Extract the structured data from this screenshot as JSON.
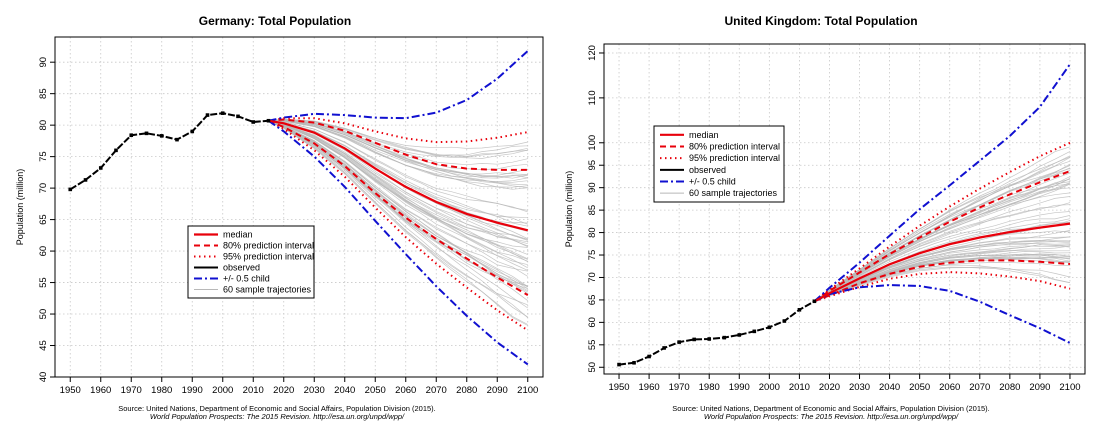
{
  "chart_data": [
    {
      "type": "line",
      "title": "Germany: Total Population",
      "xlabel": "",
      "ylabel": "Population (million)",
      "xlim": [
        1945,
        2105
      ],
      "ylim": [
        40,
        94
      ],
      "xticks": [
        1950,
        1960,
        1970,
        1980,
        1990,
        2000,
        2010,
        2020,
        2030,
        2040,
        2050,
        2060,
        2070,
        2080,
        2090,
        2100
      ],
      "yticks": [
        40,
        45,
        50,
        55,
        60,
        65,
        70,
        75,
        80,
        85,
        90
      ],
      "grid": true,
      "legend": {
        "position": "center-left",
        "entries": [
          "median",
          "80% prediction interval",
          "95% prediction interval",
          "observed",
          "+/- 0.5 child",
          "60 sample trajectories"
        ]
      },
      "observed": {
        "x": [
          1950,
          1955,
          1960,
          1965,
          1970,
          1975,
          1980,
          1985,
          1990,
          1995,
          2000,
          2005,
          2010,
          2015
        ],
        "y": [
          69.8,
          71.3,
          73.2,
          76.0,
          78.4,
          78.7,
          78.3,
          77.7,
          79.0,
          81.6,
          81.9,
          81.4,
          80.5,
          80.7
        ]
      },
      "series": [
        {
          "name": "median",
          "x": [
            2015,
            2020,
            2030,
            2040,
            2050,
            2060,
            2070,
            2080,
            2090,
            2100
          ],
          "y": [
            80.7,
            80.3,
            78.8,
            76.3,
            73.1,
            70.2,
            67.8,
            65.9,
            64.5,
            63.3
          ]
        },
        {
          "name": "80% upper",
          "x": [
            2015,
            2020,
            2030,
            2040,
            2050,
            2060,
            2070,
            2080,
            2090,
            2100
          ],
          "y": [
            80.7,
            80.9,
            80.4,
            79.1,
            77.2,
            75.3,
            73.8,
            73.1,
            72.9,
            72.9
          ]
        },
        {
          "name": "80% lower",
          "x": [
            2015,
            2020,
            2030,
            2040,
            2050,
            2060,
            2070,
            2080,
            2090,
            2100
          ],
          "y": [
            80.7,
            79.7,
            77.1,
            73.5,
            69.2,
            65.3,
            61.9,
            58.8,
            55.8,
            53.0
          ]
        },
        {
          "name": "95% upper",
          "x": [
            2015,
            2020,
            2030,
            2040,
            2050,
            2060,
            2070,
            2080,
            2090,
            2100
          ],
          "y": [
            80.7,
            81.1,
            81.1,
            80.3,
            79.0,
            77.9,
            77.3,
            77.4,
            78.0,
            78.9
          ]
        },
        {
          "name": "95% lower",
          "x": [
            2015,
            2020,
            2030,
            2040,
            2050,
            2060,
            2070,
            2080,
            2090,
            2100
          ],
          "y": [
            80.7,
            79.4,
            76.0,
            71.8,
            66.9,
            62.2,
            58.0,
            54.2,
            50.6,
            47.4
          ]
        },
        {
          "name": "+0.5 child",
          "x": [
            2015,
            2020,
            2030,
            2040,
            2050,
            2060,
            2070,
            2080,
            2090,
            2100
          ],
          "y": [
            80.7,
            81.2,
            81.8,
            81.6,
            81.2,
            81.1,
            82.0,
            84.0,
            87.4,
            91.8
          ]
        },
        {
          "name": "-0.5 child",
          "x": [
            2015,
            2020,
            2030,
            2040,
            2050,
            2060,
            2070,
            2080,
            2090,
            2100
          ],
          "y": [
            80.7,
            79.0,
            75.0,
            70.2,
            64.8,
            59.5,
            54.4,
            49.7,
            45.5,
            42.0
          ]
        }
      ],
      "source_line1": "Source: United Nations, Department of Economic and Social Affairs, Population Division (2015).",
      "source_line2": "World Population Prospects: The 2015 Revision. http://esa.un.org/unpd/wpp/"
    },
    {
      "type": "line",
      "title": "United Kingdom: Total Population",
      "xlabel": "",
      "ylabel": "Population (million)",
      "xlim": [
        1945,
        2105
      ],
      "ylim": [
        48.5,
        122
      ],
      "xticks": [
        1950,
        1960,
        1970,
        1980,
        1990,
        2000,
        2010,
        2020,
        2030,
        2040,
        2050,
        2060,
        2070,
        2080,
        2090,
        2100
      ],
      "yticks": [
        50,
        55,
        60,
        65,
        70,
        75,
        80,
        85,
        90,
        95,
        100,
        110,
        120
      ],
      "grid": true,
      "legend": {
        "position": "top-left",
        "entries": [
          "median",
          "80% prediction interval",
          "95% prediction interval",
          "observed",
          "+/- 0.5 child",
          "60 sample trajectories"
        ]
      },
      "observed": {
        "x": [
          1950,
          1955,
          1960,
          1965,
          1970,
          1975,
          1980,
          1985,
          1990,
          1995,
          2000,
          2005,
          2010,
          2015
        ],
        "y": [
          50.6,
          51.0,
          52.4,
          54.3,
          55.6,
          56.2,
          56.3,
          56.6,
          57.2,
          58.0,
          58.9,
          60.3,
          62.8,
          64.7
        ]
      },
      "series": [
        {
          "name": "median",
          "x": [
            2015,
            2020,
            2030,
            2040,
            2050,
            2060,
            2070,
            2080,
            2090,
            2100
          ],
          "y": [
            64.7,
            66.5,
            69.8,
            72.9,
            75.4,
            77.4,
            78.9,
            80.1,
            81.1,
            82.0
          ]
        },
        {
          "name": "80% upper",
          "x": [
            2015,
            2020,
            2030,
            2040,
            2050,
            2060,
            2070,
            2080,
            2090,
            2100
          ],
          "y": [
            64.7,
            67.0,
            71.1,
            75.2,
            78.9,
            82.4,
            85.6,
            88.5,
            91.2,
            93.7
          ]
        },
        {
          "name": "80% lower",
          "x": [
            2015,
            2020,
            2030,
            2040,
            2050,
            2060,
            2070,
            2080,
            2090,
            2100
          ],
          "y": [
            64.7,
            66.0,
            68.7,
            70.8,
            72.4,
            73.3,
            73.8,
            73.8,
            73.5,
            73.0
          ]
        },
        {
          "name": "95% upper",
          "x": [
            2015,
            2020,
            2030,
            2040,
            2050,
            2060,
            2070,
            2080,
            2090,
            2100
          ],
          "y": [
            64.7,
            67.3,
            72.0,
            76.9,
            81.5,
            85.8,
            89.8,
            93.5,
            97.0,
            100.0
          ]
        },
        {
          "name": "95% lower",
          "x": [
            2015,
            2020,
            2030,
            2040,
            2050,
            2060,
            2070,
            2080,
            2090,
            2100
          ],
          "y": [
            64.7,
            65.8,
            67.9,
            69.7,
            70.8,
            71.2,
            70.9,
            70.2,
            69.2,
            67.5
          ]
        },
        {
          "name": "+0.5 child",
          "x": [
            2015,
            2020,
            2030,
            2040,
            2050,
            2060,
            2070,
            2080,
            2090,
            2100
          ],
          "y": [
            64.7,
            67.7,
            73.3,
            79.3,
            85.2,
            90.5,
            96.0,
            101.5,
            108.0,
            117.5
          ]
        },
        {
          "name": "-0.5 child",
          "x": [
            2015,
            2020,
            2030,
            2040,
            2050,
            2060,
            2070,
            2080,
            2090,
            2100
          ],
          "y": [
            64.7,
            66.3,
            67.8,
            68.3,
            68.1,
            67.0,
            64.6,
            61.6,
            58.7,
            55.4
          ]
        }
      ],
      "source_line1": "Source: United Nations, Department of Economic and Social Affairs, Population Division (2015).",
      "source_line2": "World Population Prospects: The 2015 Revision. http://esa.un.org/unpd/wpp/"
    }
  ],
  "colors": {
    "median": "#e8000b",
    "interval": "#e8000b",
    "observed": "#000000",
    "child": "#1010d0",
    "trajectories": "#b8b8b8",
    "grid": "#c8c8c8"
  }
}
